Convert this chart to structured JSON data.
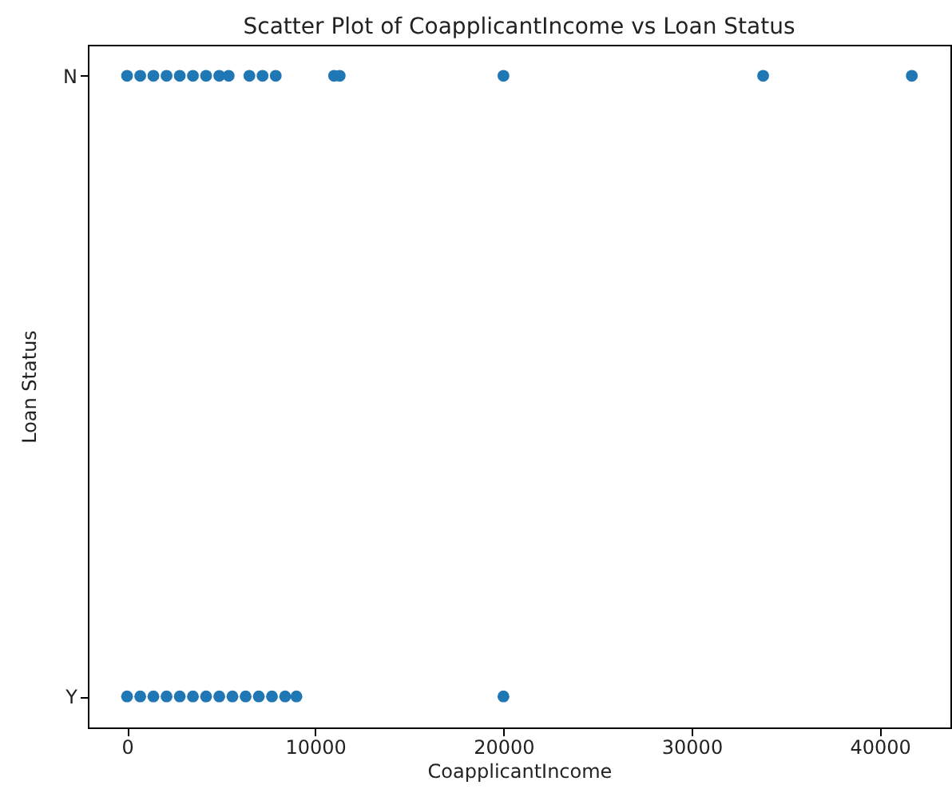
{
  "chart_data": {
    "type": "scatter",
    "orientation": "horizontal",
    "title": "Scatter Plot of CoapplicantIncome vs Loan Status",
    "xlabel": "CoapplicantIncome",
    "ylabel": "Loan Status",
    "categories": [
      "N",
      "Y"
    ],
    "xlim": [
      -2083,
      43750
    ],
    "xticks": [
      0,
      10000,
      20000,
      30000,
      40000
    ],
    "series": [
      {
        "color": "#1f77b4",
        "x": [
          "N",
          "N",
          "N",
          "N",
          "N",
          "N",
          "N",
          "N",
          "N",
          "N",
          "N",
          "N",
          "N",
          "N",
          "N",
          "N",
          "N"
        ],
        "values": [
          0,
          700,
          1400,
          2100,
          2800,
          3500,
          4200,
          4900,
          5400,
          6500,
          7200,
          7900,
          11000,
          11300,
          20000,
          33800,
          41700
        ]
      },
      {
        "color": "#1f77b4",
        "x": [
          "Y",
          "Y",
          "Y",
          "Y",
          "Y",
          "Y",
          "Y",
          "Y",
          "Y",
          "Y",
          "Y",
          "Y",
          "Y",
          "Y",
          "Y"
        ],
        "values": [
          0,
          700,
          1400,
          2100,
          2800,
          3500,
          4200,
          4900,
          5600,
          6300,
          7000,
          7700,
          8400,
          9000,
          20000
        ]
      }
    ]
  }
}
